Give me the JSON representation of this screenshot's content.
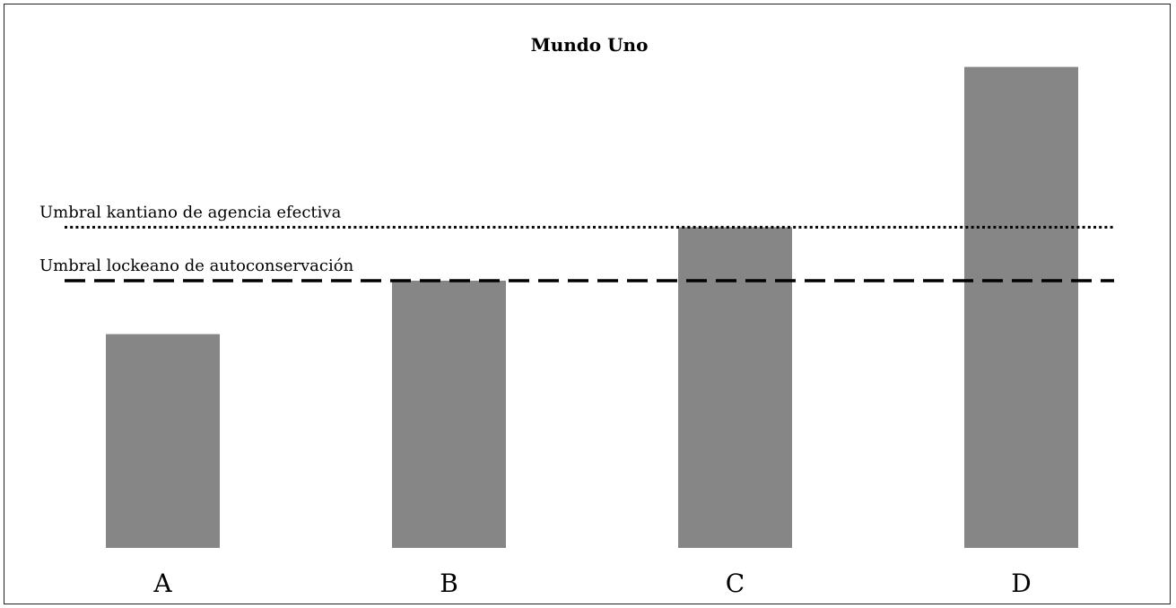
{
  "chart_data": {
    "type": "bar",
    "title": "Mundo Uno",
    "categories": [
      "A",
      "B",
      "C",
      "D"
    ],
    "values": [
      40,
      50,
      60,
      90
    ],
    "ylim": [
      0,
      100
    ],
    "xlabel": "",
    "ylabel": "",
    "grid": false,
    "axes_visible": false,
    "bar_color": "#868686",
    "reference_lines": [
      {
        "label": "Umbral kantiano de agencia efectiva",
        "value": 60,
        "style": "dotted",
        "color": "#000000"
      },
      {
        "label": "Umbral lockeano de autoconservación",
        "value": 50,
        "style": "dashed",
        "color": "#000000"
      }
    ]
  }
}
